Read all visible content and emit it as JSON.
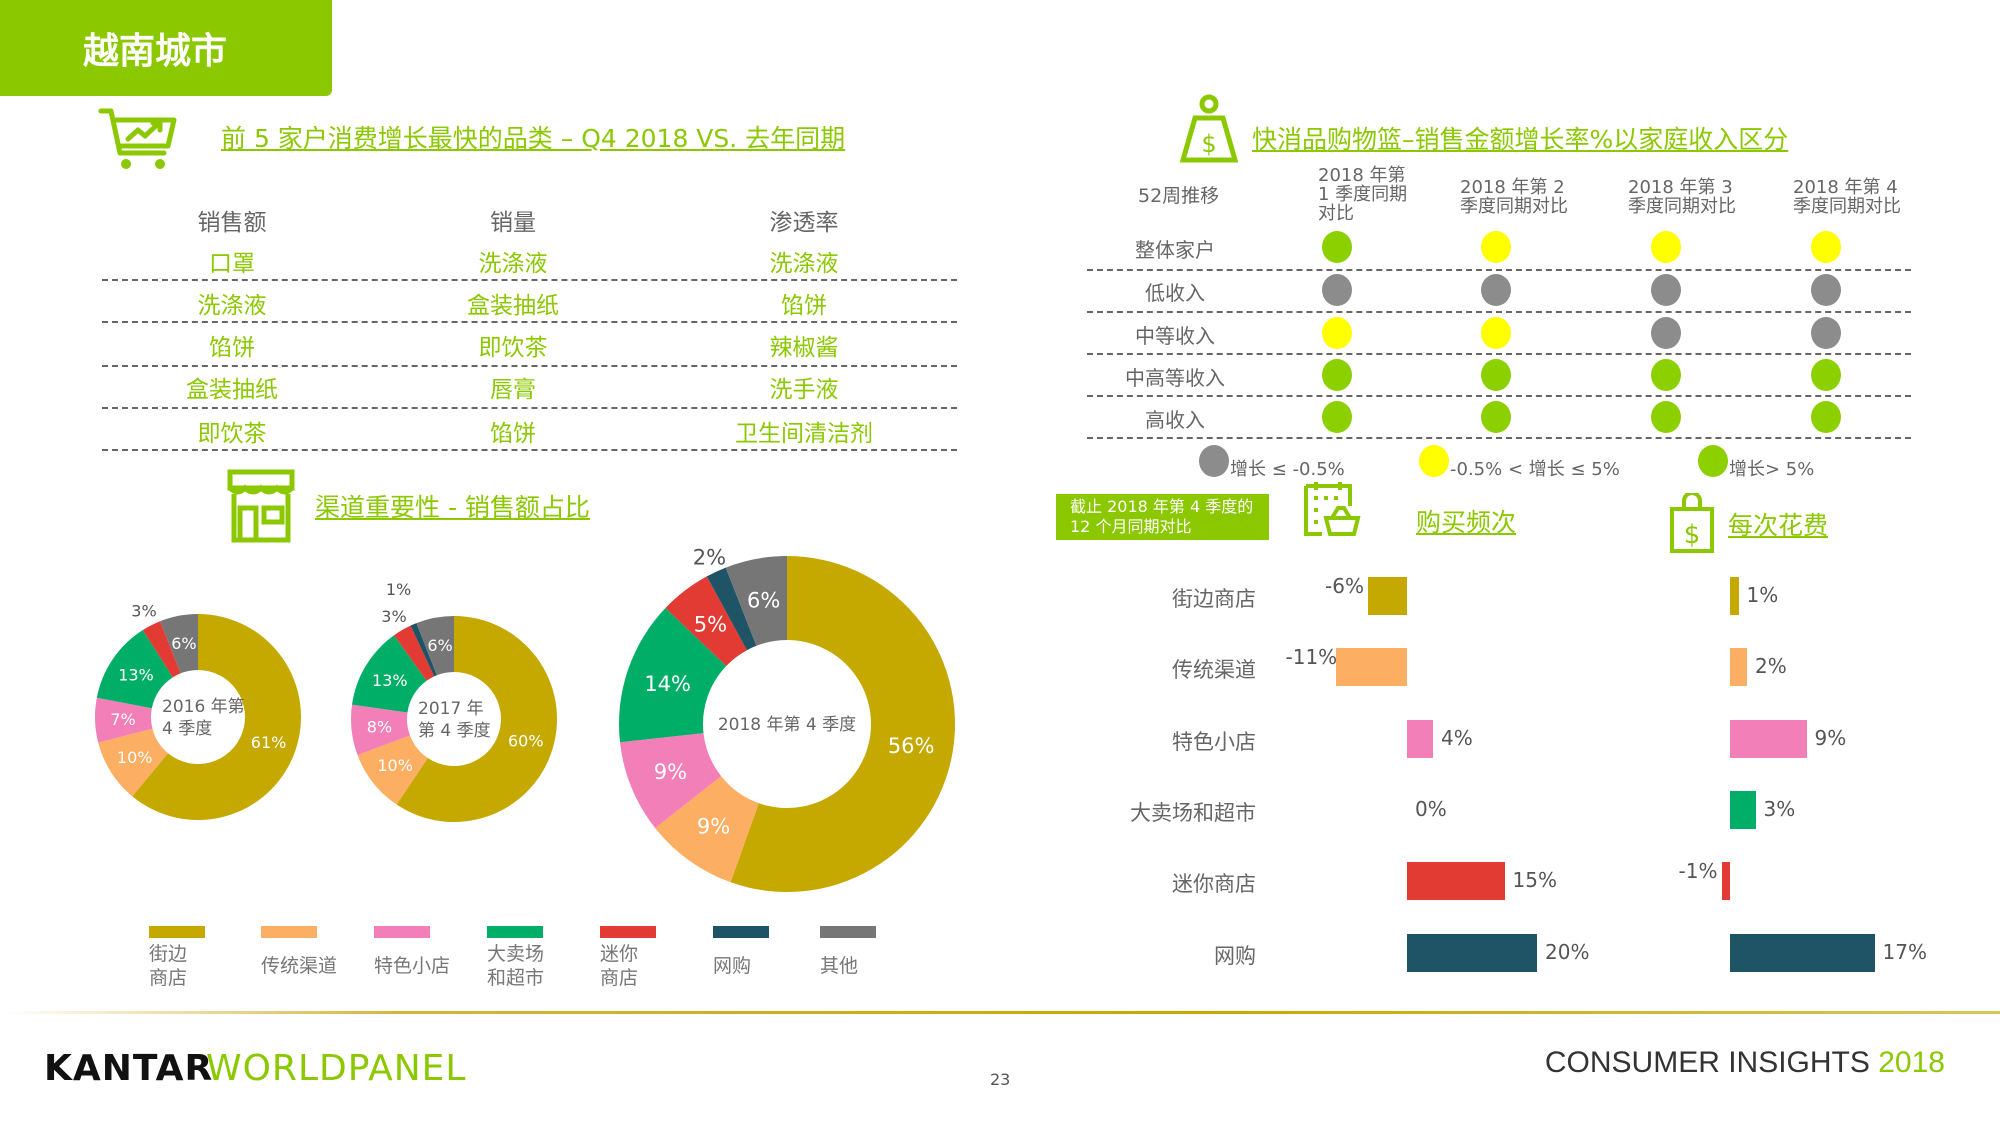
{
  "header": {
    "tab_title": "越南城市"
  },
  "top_categories": {
    "title": "前 5 家户消费增长最快的品类 – Q4 2018 VS. 去年同期",
    "columns": [
      "销售额",
      "销量",
      "渗透率"
    ],
    "rows": [
      [
        "口罩",
        "洗涤液",
        "洗涤液"
      ],
      [
        "洗涤液",
        "盒装抽纸",
        "馅饼"
      ],
      [
        "馅饼",
        "即饮茶",
        "辣椒酱"
      ],
      [
        "盒装抽纸",
        "唇膏",
        "洗手液"
      ],
      [
        "即饮茶",
        "馅饼",
        "卫生间清洁剂"
      ]
    ]
  },
  "channel": {
    "title": "渠道重要性 - 销售额占比"
  },
  "basket": {
    "title": "快消品购物篮–销售金额增长率%以家庭收入区分",
    "corner": "52周推移",
    "columns": [
      [
        "2018 年第",
        "1 季度同期",
        "对比"
      ],
      [
        "2018 年第 2",
        "季度同期对比"
      ],
      [
        "2018 年第 3",
        "季度同期对比"
      ],
      [
        "2018 年第 4",
        "季度同期对比"
      ]
    ],
    "rows": [
      {
        "label": "整体家户",
        "status": [
          "green",
          "yellow",
          "yellow",
          "yellow"
        ]
      },
      {
        "label": "低收入",
        "status": [
          "gray",
          "gray",
          "gray",
          "gray"
        ]
      },
      {
        "label": "中等收入",
        "status": [
          "yellow",
          "yellow",
          "gray",
          "gray"
        ]
      },
      {
        "label": "中高等收入",
        "status": [
          "green",
          "green",
          "green",
          "green"
        ]
      },
      {
        "label": "高收入",
        "status": [
          "green",
          "green",
          "green",
          "green"
        ]
      }
    ],
    "legend": [
      {
        "status": "gray",
        "label": "增长 ≤ -0.5%"
      },
      {
        "status": "yellow",
        "label": "-0.5% < 增长 ≤ 5%"
      },
      {
        "status": "green",
        "label": "增长> 5%"
      }
    ],
    "status_colors": {
      "green": "#8cd000",
      "yellow": "#ffff00",
      "gray": "#8c8c8c"
    }
  },
  "period_box": [
    "截止 2018 年第 4 季度的",
    "12 个月同期对比"
  ],
  "freq_title": "购买频次",
  "spend_title": "每次花费",
  "colors": {
    "accent": "#8cc800",
    "街边商店": "#c5a800",
    "传统渠道": "#fcae62",
    "特色小店": "#f37fb8",
    "大卖场和超市": "#00ae68",
    "迷你商店": "#e13b33",
    "网购": "#1e5466",
    "其他": "#767676"
  },
  "chart_data": [
    {
      "type": "pie",
      "donut": true,
      "center_label": [
        "2016 年第",
        "4 季度"
      ],
      "categories": [
        "街边商店",
        "传统渠道",
        "特色小店",
        "大卖场和超市",
        "迷你商店",
        "网购",
        "其他"
      ],
      "values": [
        61,
        10,
        7,
        13,
        3,
        0,
        6
      ]
    },
    {
      "type": "pie",
      "donut": true,
      "center_label": [
        "2017 年",
        "第 4 季度"
      ],
      "categories": [
        "街边商店",
        "传统渠道",
        "特色小店",
        "大卖场和超市",
        "迷你商店",
        "网购",
        "其他"
      ],
      "values": [
        60,
        10,
        8,
        13,
        3,
        1,
        6
      ]
    },
    {
      "type": "pie",
      "donut": true,
      "center_label": [
        "2018 年第 4 季度"
      ],
      "categories": [
        "街边商店",
        "传统渠道",
        "特色小店",
        "大卖场和超市",
        "迷你商店",
        "网购",
        "其他"
      ],
      "values": [
        56,
        9,
        9,
        14,
        5,
        2,
        6
      ]
    },
    {
      "type": "bar",
      "orientation": "horizontal",
      "title": "购买频次",
      "categories": [
        "街边商店",
        "传统渠道",
        "特色小店",
        "大卖场和超市",
        "迷你商店",
        "网购"
      ],
      "values": [
        -6,
        -11,
        4,
        0,
        15,
        20
      ],
      "unit": "%"
    },
    {
      "type": "bar",
      "orientation": "horizontal",
      "title": "每次花费",
      "categories": [
        "街边商店",
        "传统渠道",
        "特色小店",
        "大卖场和超市",
        "迷你商店",
        "网购"
      ],
      "values": [
        1,
        2,
        9,
        3,
        -1,
        17
      ],
      "unit": "%"
    }
  ],
  "legend_labels": [
    [
      "街边",
      "商店"
    ],
    [
      "传统渠道"
    ],
    [
      "特色小店"
    ],
    [
      "大卖场",
      "和超市"
    ],
    [
      "迷你",
      "商店"
    ],
    [
      "网购"
    ],
    [
      "其他"
    ]
  ],
  "footer": {
    "logo": "KANTAR WORLDPANEL",
    "page": "23",
    "brand": "CONSUMER INSIGHTS",
    "year": "2018"
  }
}
